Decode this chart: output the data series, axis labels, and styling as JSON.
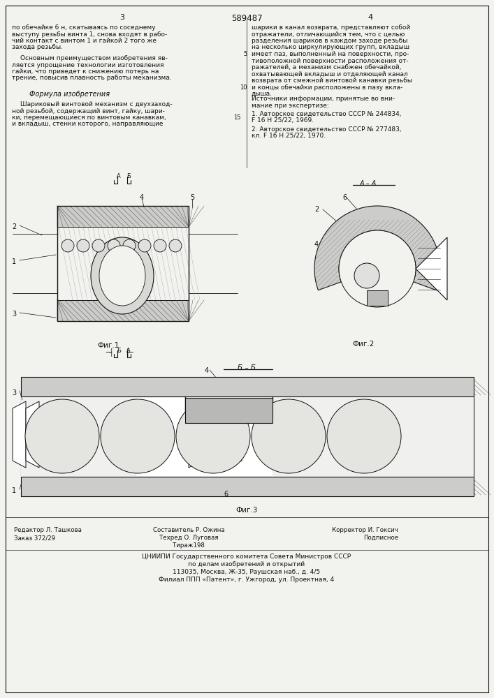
{
  "patent_number": "589487",
  "bg_color": "#f2f2ee",
  "text_color": "#1a1a1a",
  "line_color": "#111111"
}
